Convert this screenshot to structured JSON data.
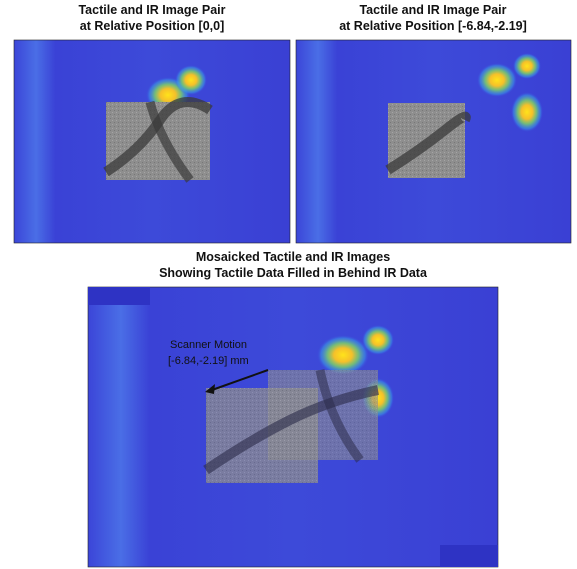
{
  "panels": [
    {
      "title": [
        "Tactile and IR Image Pair",
        "at Relative Position [0,0]"
      ]
    },
    {
      "title": [
        "Tactile and IR Image Pair",
        "at Relative Position [-6.84,-2.19]"
      ]
    },
    {
      "title": [
        "Mosaicked Tactile and IR Images",
        "Showing Tactile Data Filled in Behind IR Data"
      ]
    }
  ],
  "annotation": [
    "Scanner Motion",
    "[-6.84,-2.19] mm"
  ]
}
